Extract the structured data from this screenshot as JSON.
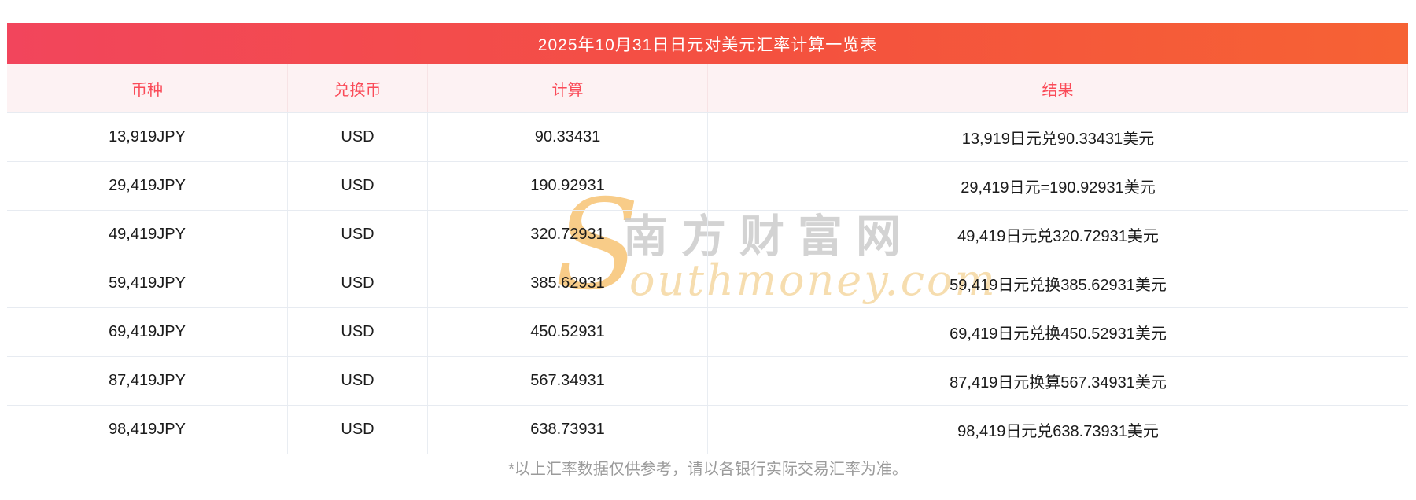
{
  "page": {
    "title": "2025年10月31日日元对美元汇率计算一览表",
    "footnote": "*以上汇率数据仅供参考，请以各银行实际交易汇率为准。"
  },
  "colors": {
    "title_bar_gradient_left": "#f2455c",
    "title_bar_gradient_right": "#f66234",
    "title_text": "#ffffff",
    "header_row_bg": "#fdf2f3",
    "header_row_text": "#fa4b58",
    "row_divider": "#e7ebf1",
    "body_text": "#1b1b1b",
    "footnote_text": "#9b9b9b",
    "watermark_grey": "#c9c9c9",
    "watermark_orange_s": "#f8c77c",
    "watermark_orange_text": "#f6dcab"
  },
  "table": {
    "columns": [
      {
        "key": "currency",
        "label": "币种"
      },
      {
        "key": "target",
        "label": "兑换币"
      },
      {
        "key": "calc",
        "label": "计算"
      },
      {
        "key": "result",
        "label": "结果"
      }
    ],
    "rows": [
      {
        "currency": "13,919JPY",
        "target": "USD",
        "calc": "90.33431",
        "result": "13,919日元兑90.33431美元"
      },
      {
        "currency": "29,419JPY",
        "target": "USD",
        "calc": "190.92931",
        "result": "29,419日元=190.92931美元"
      },
      {
        "currency": "49,419JPY",
        "target": "USD",
        "calc": "320.72931",
        "result": "49,419日元兑320.72931美元"
      },
      {
        "currency": "59,419JPY",
        "target": "USD",
        "calc": "385.62931",
        "result": "59,419日元兑换385.62931美元"
      },
      {
        "currency": "69,419JPY",
        "target": "USD",
        "calc": "450.52931",
        "result": "69,419日元兑换450.52931美元"
      },
      {
        "currency": "87,419JPY",
        "target": "USD",
        "calc": "567.34931",
        "result": "87,419日元换算567.34931美元"
      },
      {
        "currency": "98,419JPY",
        "target": "USD",
        "calc": "638.73931",
        "result": "98,419日元兑638.73931美元"
      }
    ]
  },
  "watermark": {
    "initial": "S",
    "cjk": "南方财富网",
    "latin": "outhmoney.com"
  }
}
